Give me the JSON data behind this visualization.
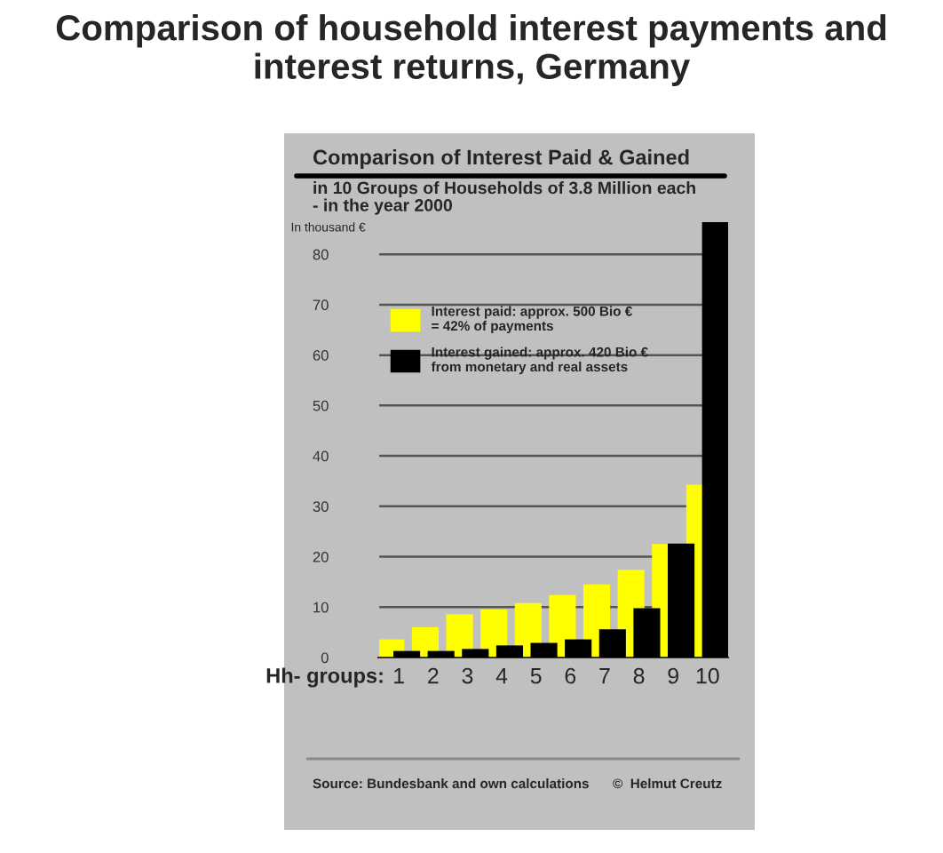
{
  "chart_data": {
    "type": "bar",
    "title": "Comparison of household interest payments and interest returns, Germany",
    "subtitle": "Comparison of Interest Paid & Gained",
    "annotations": [
      "in 10 Groups of Households of 3.8 Million each\n- in the year 2000",
      "Source: Bundesbank and own calculations",
      "©  Helmut Creutz"
    ],
    "xlabel": "Hh- groups:",
    "ylabel": "In thousand €",
    "categories": [
      "1",
      "2",
      "3",
      "4",
      "5",
      "6",
      "7",
      "8",
      "9",
      "10"
    ],
    "series": [
      {
        "name": "Interest paid: approx. 500 Bio €\n= 42% of payments",
        "color": "#ffff00",
        "values": [
          3.6,
          6.0,
          8.6,
          9.5,
          10.8,
          12.4,
          14.5,
          17.4,
          22.5,
          34.3
        ]
      },
      {
        "name": "Interest gained: approx. 420 Bio €\nfrom monetary and real assets",
        "color": "#000000",
        "values": [
          1.3,
          1.3,
          1.7,
          2.4,
          2.9,
          3.6,
          5.6,
          9.8,
          22.6,
          86.4
        ]
      }
    ],
    "ylim": [
      0,
      88
    ],
    "yticks": [
      0,
      10,
      20,
      30,
      40,
      50,
      60,
      70,
      80
    ],
    "grid": "y",
    "legend": "upper left"
  }
}
